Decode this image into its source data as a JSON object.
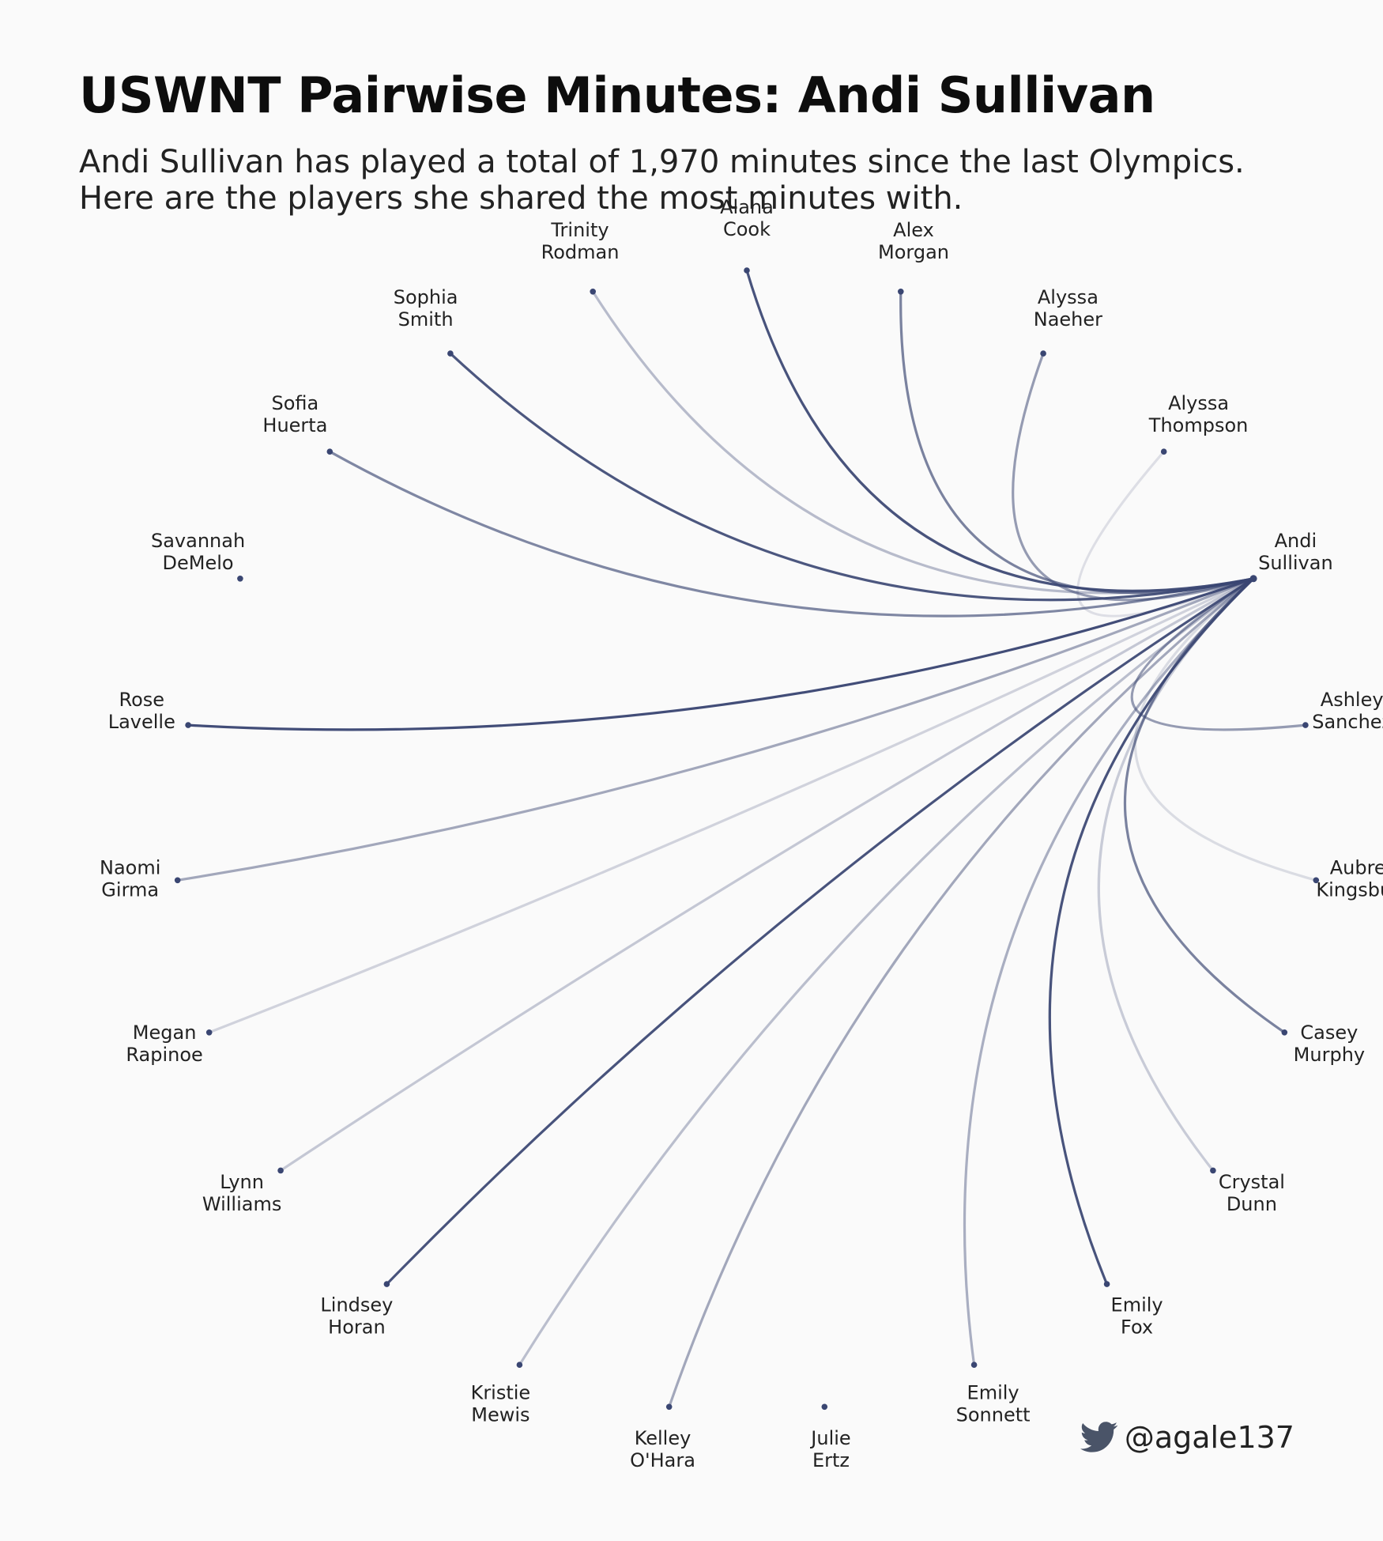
{
  "header": {
    "title": "USWNT Pairwise Minutes: Andi Sullivan",
    "subtitle": "Andi Sullivan has played a total of 1,970 minutes since the last Olympics. Here are the players she shared the most minutes with."
  },
  "footer": {
    "handle": "@agale137",
    "icon": "twitter-bird-icon"
  },
  "colors": {
    "edge": "#3a4672",
    "node": "#3a4672",
    "background": "#fafafa"
  },
  "chart_data": {
    "type": "radial-network",
    "center": {
      "first": "Andi",
      "last": "Sullivan"
    },
    "players": [
      {
        "first": "Alana",
        "last": "Cook",
        "strength": 0.95
      },
      {
        "first": "Alex",
        "last": "Morgan",
        "strength": 0.65
      },
      {
        "first": "Alyssa",
        "last": "Naeher",
        "strength": 0.5
      },
      {
        "first": "Alyssa",
        "last": "Thompson",
        "strength": 0.08
      },
      {
        "first": "Andi",
        "last": "Sullivan",
        "strength": 0,
        "center": true
      },
      {
        "first": "Ashley",
        "last": "Sanchez",
        "strength": 0.5
      },
      {
        "first": "Aubrey",
        "last": "Kingsbury",
        "strength": 0.1
      },
      {
        "first": "Casey",
        "last": "Murphy",
        "strength": 0.65
      },
      {
        "first": "Crystal",
        "last": "Dunn",
        "strength": 0.2
      },
      {
        "first": "Emily",
        "last": "Fox",
        "strength": 0.95
      },
      {
        "first": "Emily",
        "last": "Sonnett",
        "strength": 0.38
      },
      {
        "first": "Julie",
        "last": "Ertz",
        "strength": 0
      },
      {
        "first": "Kelley",
        "last": "O'Hara",
        "strength": 0.42
      },
      {
        "first": "Kristie",
        "last": "Mewis",
        "strength": 0.28
      },
      {
        "first": "Lindsey",
        "last": "Horan",
        "strength": 0.95
      },
      {
        "first": "Lynn",
        "last": "Williams",
        "strength": 0.22
      },
      {
        "first": "Megan",
        "last": "Rapinoe",
        "strength": 0.15
      },
      {
        "first": "Naomi",
        "last": "Girma",
        "strength": 0.42
      },
      {
        "first": "Rose",
        "last": "Lavelle",
        "strength": 0.98
      },
      {
        "first": "Savannah",
        "last": "DeMelo",
        "strength": 0
      },
      {
        "first": "Sofia",
        "last": "Huerta",
        "strength": 0.62
      },
      {
        "first": "Sophia",
        "last": "Smith",
        "strength": 0.92
      },
      {
        "first": "Trinity",
        "last": "Rodman",
        "strength": 0.3
      }
    ]
  }
}
